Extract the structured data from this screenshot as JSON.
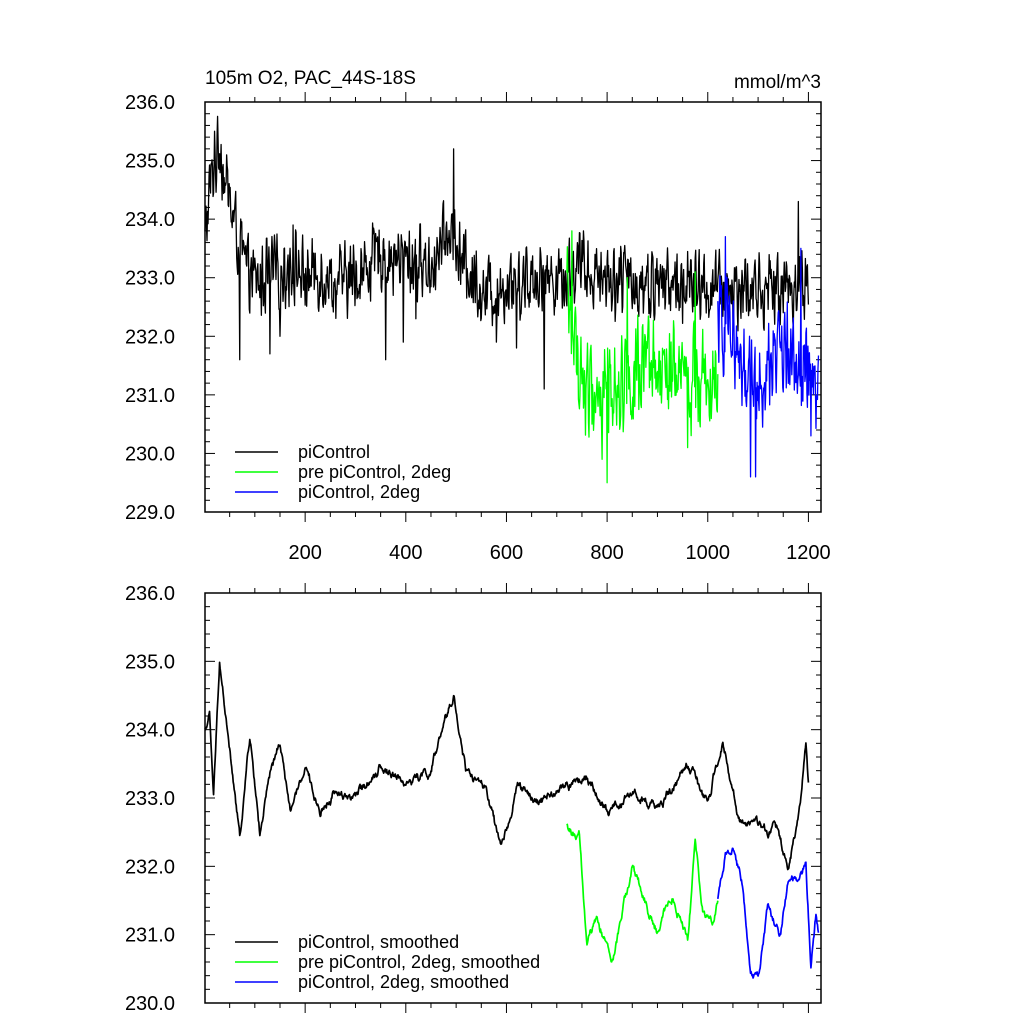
{
  "chart_data": [
    {
      "type": "line",
      "title": "105m O2, PAC_44S-18S",
      "units": "mmol/m^3",
      "xlim": [
        1,
        1225
      ],
      "ylim": [
        229.0,
        236.0
      ],
      "x_tick_labels": [
        "200",
        "400",
        "600",
        "800",
        "1000",
        "1200"
      ],
      "y_tick_labels": [
        "229.0",
        "230.0",
        "231.0",
        "232.0",
        "233.0",
        "234.0",
        "235.0",
        "236.0"
      ],
      "legend_position": "bottom-left",
      "series": [
        {
          "name": "piControl",
          "color": "#000000",
          "x_start": 1,
          "x_end": 1200,
          "anchors": [
            [
              1,
              233.6
            ],
            [
              10,
              234.5
            ],
            [
              20,
              234.9
            ],
            [
              30,
              235.3
            ],
            [
              45,
              234.5
            ],
            [
              60,
              233.9
            ],
            [
              80,
              233.2
            ],
            [
              100,
              232.9
            ],
            [
              120,
              233.0
            ],
            [
              150,
              233.1
            ],
            [
              180,
              233.2
            ],
            [
              200,
              233.0
            ],
            [
              230,
              233.1
            ],
            [
              260,
              232.9
            ],
            [
              300,
              233.0
            ],
            [
              350,
              233.4
            ],
            [
              400,
              233.3
            ],
            [
              450,
              233.2
            ],
            [
              490,
              233.8
            ],
            [
              510,
              233.3
            ],
            [
              560,
              232.7
            ],
            [
              600,
              232.9
            ],
            [
              650,
              233.0
            ],
            [
              700,
              233.0
            ],
            [
              750,
              233.2
            ],
            [
              800,
              233.0
            ],
            [
              900,
              232.9
            ],
            [
              1000,
              232.8
            ],
            [
              1100,
              232.8
            ],
            [
              1200,
              232.9
            ]
          ],
          "noise": 0.75,
          "spikes": [
            [
              20,
              235.5
            ],
            [
              70,
              231.6
            ],
            [
              130,
              231.7
            ],
            [
              150,
              232.0
            ],
            [
              176,
              233.9
            ],
            [
              360,
              231.6
            ],
            [
              395,
              231.9
            ],
            [
              420,
              232.3
            ],
            [
              495,
              235.2
            ],
            [
              580,
              231.9
            ],
            [
              620,
              231.8
            ],
            [
              675,
              231.1
            ],
            [
              1180,
              234.3
            ]
          ]
        },
        {
          "name": "pre piControl, 2deg",
          "color": "#00ff00",
          "x_start": 720,
          "x_end": 1020,
          "anchors": [
            [
              720,
              232.8
            ],
            [
              740,
              231.6
            ],
            [
              760,
              231.0
            ],
            [
              800,
              231.1
            ],
            [
              850,
              231.4
            ],
            [
              900,
              231.3
            ],
            [
              950,
              231.2
            ],
            [
              1000,
              231.4
            ],
            [
              1020,
              231.6
            ]
          ],
          "noise": 1.05,
          "spikes": [
            [
              730,
              233.8
            ],
            [
              800,
              229.5
            ],
            [
              790,
              229.9
            ],
            [
              840,
              233.0
            ],
            [
              975,
              233.1
            ],
            [
              960,
              230.1
            ]
          ]
        },
        {
          "name": "piControl, 2deg",
          "color": "#0000ff",
          "x_start": 1020,
          "x_end": 1220,
          "anchors": [
            [
              1020,
              232.3
            ],
            [
              1050,
              232.0
            ],
            [
              1080,
              231.4
            ],
            [
              1100,
              231.2
            ],
            [
              1140,
              231.8
            ],
            [
              1170,
              231.6
            ],
            [
              1200,
              231.3
            ],
            [
              1220,
              231.0
            ]
          ],
          "noise": 1.05,
          "spikes": [
            [
              1035,
              233.7
            ],
            [
              1085,
              229.6
            ],
            [
              1095,
              229.6
            ],
            [
              1185,
              233.5
            ],
            [
              1205,
              230.3
            ]
          ]
        }
      ]
    },
    {
      "type": "line",
      "title": "",
      "xlim": [
        1,
        1225
      ],
      "ylim": [
        230.0,
        236.0
      ],
      "y_tick_labels": [
        "230.0",
        "231.0",
        "232.0",
        "233.0",
        "234.0",
        "235.0",
        "236.0"
      ],
      "legend_position": "bottom-left",
      "series": [
        {
          "name": "piControl, smoothed",
          "color": "#000000",
          "x_start": 1,
          "x_end": 1200,
          "anchors": [
            [
              1,
              234.0
            ],
            [
              10,
              234.2
            ],
            [
              18,
              233.0
            ],
            [
              30,
              235.0
            ],
            [
              45,
              234.0
            ],
            [
              70,
              232.4
            ],
            [
              90,
              233.9
            ],
            [
              110,
              232.5
            ],
            [
              130,
              233.3
            ],
            [
              150,
              233.8
            ],
            [
              170,
              232.8
            ],
            [
              200,
              233.4
            ],
            [
              230,
              232.8
            ],
            [
              260,
              233.1
            ],
            [
              300,
              233.0
            ],
            [
              350,
              233.5
            ],
            [
              400,
              233.2
            ],
            [
              450,
              233.4
            ],
            [
              495,
              234.5
            ],
            [
              520,
              233.4
            ],
            [
              560,
              233.1
            ],
            [
              590,
              232.2
            ],
            [
              620,
              233.2
            ],
            [
              660,
              232.9
            ],
            [
              700,
              233.1
            ],
            [
              760,
              233.3
            ],
            [
              800,
              232.8
            ],
            [
              850,
              233.1
            ],
            [
              900,
              232.8
            ],
            [
              960,
              233.5
            ],
            [
              1000,
              232.9
            ],
            [
              1030,
              233.8
            ],
            [
              1060,
              232.7
            ],
            [
              1100,
              232.6
            ],
            [
              1140,
              232.5
            ],
            [
              1160,
              232.0
            ],
            [
              1180,
              232.8
            ],
            [
              1195,
              233.8
            ],
            [
              1200,
              233.2
            ]
          ],
          "noise": 0.28,
          "spikes": []
        },
        {
          "name": "pre piControl, 2deg, smoothed",
          "color": "#00ff00",
          "x_start": 720,
          "x_end": 1020,
          "anchors": [
            [
              720,
              232.6
            ],
            [
              745,
              232.4
            ],
            [
              760,
              230.8
            ],
            [
              780,
              231.3
            ],
            [
              810,
              230.6
            ],
            [
              830,
              231.3
            ],
            [
              850,
              232.0
            ],
            [
              880,
              231.4
            ],
            [
              900,
              231.0
            ],
            [
              930,
              231.6
            ],
            [
              960,
              230.9
            ],
            [
              975,
              232.3
            ],
            [
              990,
              231.4
            ],
            [
              1010,
              231.2
            ],
            [
              1020,
              231.5
            ]
          ],
          "noise": 0.28,
          "spikes": []
        },
        {
          "name": "piControl, 2deg, smoothed",
          "color": "#0000ff",
          "x_start": 1020,
          "x_end": 1220,
          "anchors": [
            [
              1020,
              231.5
            ],
            [
              1035,
              232.2
            ],
            [
              1050,
              232.3
            ],
            [
              1070,
              231.7
            ],
            [
              1085,
              230.5
            ],
            [
              1100,
              230.4
            ],
            [
              1120,
              231.4
            ],
            [
              1145,
              231.0
            ],
            [
              1160,
              231.9
            ],
            [
              1180,
              231.8
            ],
            [
              1195,
              232.0
            ],
            [
              1205,
              230.6
            ],
            [
              1215,
              231.3
            ],
            [
              1220,
              231.0
            ]
          ],
          "noise": 0.28,
          "spikes": []
        }
      ]
    }
  ]
}
